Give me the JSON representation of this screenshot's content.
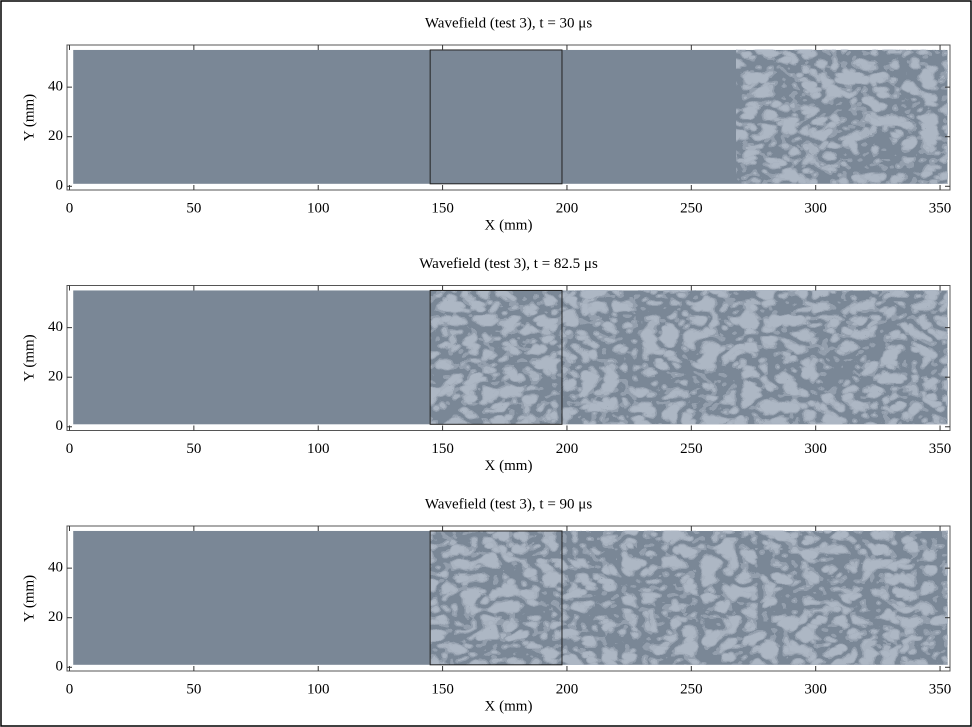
{
  "chart_data": [
    {
      "type": "heatmap",
      "title": "Wavefield (test 3), t = 30 μs",
      "xlabel": "X (mm)",
      "ylabel": "Y (mm)",
      "xlim": [
        -1,
        354
      ],
      "ylim": [
        -1.5,
        57
      ],
      "xticks": [
        0,
        50,
        100,
        150,
        200,
        250,
        300,
        350
      ],
      "yticks": [
        0,
        20,
        40
      ],
      "field": {
        "x": [
          1.5,
          353
        ],
        "y": [
          1,
          55
        ]
      },
      "box": {
        "x": [
          145,
          198
        ],
        "y": [
          1,
          55
        ]
      },
      "wave_from": 268,
      "color": "#7a8796"
    },
    {
      "type": "heatmap",
      "title": "Wavefield (test 3), t = 82.5 μs",
      "xlabel": "X (mm)",
      "ylabel": "Y (mm)",
      "xlim": [
        -1,
        354
      ],
      "ylim": [
        -1.5,
        57
      ],
      "xticks": [
        0,
        50,
        100,
        150,
        200,
        250,
        300,
        350
      ],
      "yticks": [
        0,
        20,
        40
      ],
      "field": {
        "x": [
          1.5,
          353
        ],
        "y": [
          1,
          55
        ]
      },
      "box": {
        "x": [
          145,
          198
        ],
        "y": [
          1,
          55
        ]
      },
      "wave_from": 145,
      "color": "#7a8796"
    },
    {
      "type": "heatmap",
      "title": "Wavefield (test 3), t = 90 μs",
      "xlabel": "X (mm)",
      "ylabel": "Y (mm)",
      "xlim": [
        -1,
        354
      ],
      "ylim": [
        -1.5,
        57
      ],
      "xticks": [
        0,
        50,
        100,
        150,
        200,
        250,
        300,
        350
      ],
      "yticks": [
        0,
        20,
        40
      ],
      "field": {
        "x": [
          1.5,
          353
        ],
        "y": [
          1,
          55
        ]
      },
      "box": {
        "x": [
          145,
          198
        ],
        "y": [
          1,
          55
        ]
      },
      "wave_from": 145,
      "color": "#7a8796"
    }
  ]
}
